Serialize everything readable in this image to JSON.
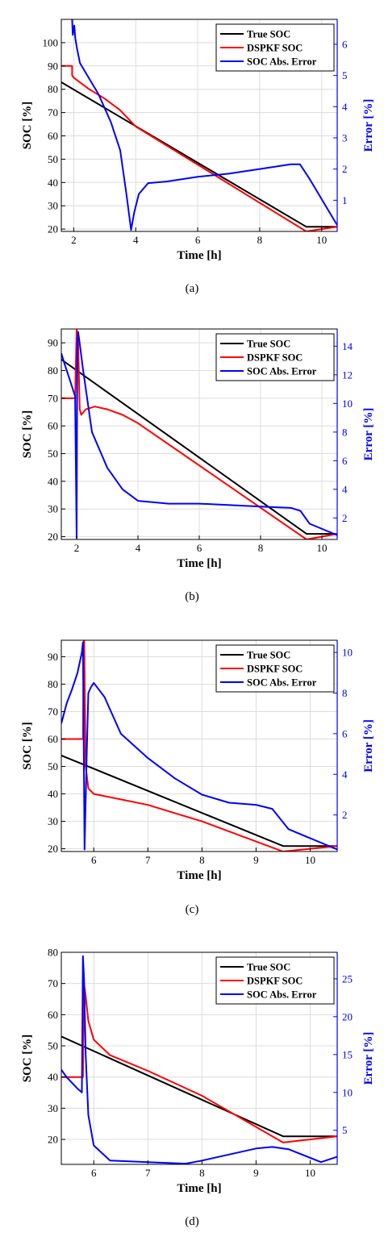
{
  "chart_data": [
    {
      "id": "a",
      "type": "line",
      "caption": "(a)",
      "xlabel": "Time [h]",
      "ylabel_left": "SOC [%]",
      "ylabel_right": "Error [%]",
      "xlim": [
        1.6,
        10.5
      ],
      "ylim_left": [
        19,
        110
      ],
      "ylim_right": [
        0,
        6.8
      ],
      "xticks": [
        2,
        4,
        6,
        8,
        10
      ],
      "yticks_left": [
        20,
        30,
        40,
        50,
        60,
        70,
        80,
        90,
        100
      ],
      "yticks_right": [
        1,
        2,
        3,
        4,
        5,
        6
      ],
      "grid": true,
      "legend_position": "top-right",
      "colors": {
        "true_soc": "#000000",
        "dspkf_soc": "#ff0000",
        "error": "#0000ff"
      },
      "series": [
        {
          "name": "True SOC",
          "axis": "left",
          "color": "#000000",
          "x": [
            1.6,
            9.5,
            10.5
          ],
          "y": [
            83,
            21,
            21
          ]
        },
        {
          "name": "DSPKF SOC",
          "axis": "left",
          "color": "#ff0000",
          "x": [
            1.6,
            1.95,
            1.95,
            2.0,
            2.5,
            3.0,
            3.5,
            4.0,
            9.5,
            10.5
          ],
          "y": [
            90,
            90,
            86,
            85,
            80,
            76,
            71,
            64,
            19,
            21
          ]
        },
        {
          "name": "SOC Abs. Error",
          "axis": "right",
          "color": "#0000ff",
          "x": [
            1.95,
            1.97,
            2.02,
            2.05,
            2.1,
            2.2,
            2.5,
            2.8,
            3.2,
            3.5,
            3.7,
            3.85,
            3.95,
            4.1,
            4.4,
            5.0,
            6.0,
            7.0,
            8.0,
            9.0,
            9.3,
            9.6,
            10.5
          ],
          "y": [
            6.8,
            6.3,
            6.6,
            6.2,
            5.9,
            5.4,
            4.9,
            4.4,
            3.5,
            2.6,
            1.2,
            0.05,
            0.6,
            1.2,
            1.55,
            1.6,
            1.75,
            1.85,
            2.0,
            2.15,
            2.15,
            1.7,
            0.2
          ]
        }
      ]
    },
    {
      "id": "b",
      "type": "line",
      "caption": "(b)",
      "xlabel": "Time [h]",
      "ylabel_left": "SOC [%]",
      "ylabel_right": "Error [%]",
      "xlim": [
        1.5,
        10.5
      ],
      "ylim_left": [
        19,
        95
      ],
      "ylim_right": [
        0.5,
        15.2
      ],
      "xticks": [
        2,
        4,
        6,
        8,
        10
      ],
      "yticks_left": [
        20,
        30,
        40,
        50,
        60,
        70,
        80,
        90
      ],
      "yticks_right": [
        2,
        4,
        6,
        8,
        10,
        12,
        14
      ],
      "grid": true,
      "legend_position": "top-right",
      "series": [
        {
          "name": "True SOC",
          "axis": "left",
          "color": "#000000",
          "x": [
            1.5,
            9.5,
            10.5
          ],
          "y": [
            84,
            21,
            21
          ]
        },
        {
          "name": "DSPKF SOC",
          "axis": "left",
          "color": "#ff0000",
          "x": [
            1.5,
            1.95,
            2.0,
            2.05,
            2.1,
            2.15,
            2.3,
            2.6,
            3.0,
            3.5,
            4.0,
            9.5,
            10.5
          ],
          "y": [
            70,
            70,
            95,
            90,
            66,
            64,
            66,
            67,
            66,
            64,
            61,
            19,
            21
          ]
        },
        {
          "name": "SOC Abs. Error",
          "axis": "right",
          "color": "#0000ff",
          "x": [
            1.5,
            1.6,
            1.8,
            1.95,
            2.0,
            2.02,
            2.05,
            2.1,
            2.2,
            2.5,
            3.0,
            3.5,
            4.0,
            5.0,
            6.0,
            7.0,
            8.0,
            9.0,
            9.3,
            9.6,
            10.5
          ],
          "y": [
            13.5,
            12.8,
            11.5,
            10.5,
            0.6,
            14.0,
            15.0,
            14.2,
            12.5,
            8.0,
            5.5,
            4.0,
            3.2,
            3.0,
            3.0,
            2.9,
            2.8,
            2.7,
            2.5,
            1.6,
            0.8
          ]
        }
      ]
    },
    {
      "id": "c",
      "type": "line",
      "caption": "(c)",
      "xlabel": "Time [h]",
      "ylabel_left": "SOC [%]",
      "ylabel_right": "Error [%]",
      "xlim": [
        5.4,
        10.5
      ],
      "ylim_left": [
        19,
        96
      ],
      "ylim_right": [
        0.2,
        10.6
      ],
      "xticks": [
        6,
        7,
        8,
        9,
        10
      ],
      "yticks_left": [
        20,
        30,
        40,
        50,
        60,
        70,
        80,
        90
      ],
      "yticks_right": [
        2,
        4,
        6,
        8,
        10
      ],
      "grid": true,
      "legend_position": "top-right",
      "series": [
        {
          "name": "True SOC",
          "axis": "left",
          "color": "#000000",
          "x": [
            5.4,
            9.5,
            10.5
          ],
          "y": [
            54,
            21,
            21
          ]
        },
        {
          "name": "DSPKF SOC",
          "axis": "left",
          "color": "#ff0000",
          "x": [
            5.4,
            5.8,
            5.82,
            5.85,
            5.9,
            6.0,
            6.5,
            7.0,
            7.5,
            8.0,
            9.5,
            10.5
          ],
          "y": [
            60,
            60,
            100,
            50,
            42,
            40,
            38,
            36,
            33,
            30,
            19,
            21
          ]
        },
        {
          "name": "SOC Abs. Error",
          "axis": "right",
          "color": "#0000ff",
          "x": [
            5.4,
            5.5,
            5.6,
            5.7,
            5.78,
            5.8,
            5.83,
            5.87,
            5.9,
            5.95,
            6.0,
            6.2,
            6.5,
            7.0,
            7.5,
            8.0,
            8.5,
            9.0,
            9.3,
            9.6,
            10.5
          ],
          "y": [
            6.5,
            7.5,
            8.2,
            9.0,
            10.0,
            10.5,
            0.3,
            5.0,
            8.0,
            8.3,
            8.5,
            7.8,
            6.0,
            4.8,
            3.8,
            3.0,
            2.6,
            2.5,
            2.3,
            1.3,
            0.3
          ]
        }
      ]
    },
    {
      "id": "d",
      "type": "line",
      "caption": "(d)",
      "xlabel": "Time [h]",
      "ylabel_left": "SOC [%]",
      "ylabel_right": "Error [%]",
      "xlim": [
        5.4,
        10.5
      ],
      "ylim_left": [
        12,
        80
      ],
      "ylim_right": [
        0.5,
        28.5
      ],
      "xticks": [
        6,
        7,
        8,
        9,
        10
      ],
      "yticks_left": [
        20,
        30,
        40,
        50,
        60,
        70,
        80
      ],
      "yticks_right": [
        5,
        10,
        15,
        20,
        25
      ],
      "grid": true,
      "legend_position": "top-right",
      "series": [
        {
          "name": "True SOC",
          "axis": "left",
          "color": "#000000",
          "x": [
            5.4,
            9.5,
            10.5
          ],
          "y": [
            53,
            21,
            21
          ]
        },
        {
          "name": "DSPKF SOC",
          "axis": "left",
          "color": "#ff0000",
          "x": [
            5.4,
            5.8,
            5.82,
            5.85,
            5.9,
            6.0,
            6.3,
            7.0,
            8.0,
            9.5,
            10.5
          ],
          "y": [
            40,
            40,
            70,
            66,
            58,
            52,
            47,
            42,
            34,
            19,
            21
          ]
        },
        {
          "name": "SOC Abs. Error",
          "axis": "right",
          "color": "#0000ff",
          "x": [
            5.4,
            5.5,
            5.7,
            5.78,
            5.8,
            5.82,
            5.85,
            5.9,
            6.0,
            6.3,
            7.0,
            7.7,
            8.0,
            9.0,
            9.3,
            9.6,
            10.2,
            10.5
          ],
          "y": [
            13.0,
            12.0,
            10.5,
            10.0,
            28.0,
            25.0,
            15.0,
            7.0,
            3.0,
            1.0,
            0.8,
            0.6,
            1.0,
            2.6,
            2.8,
            2.5,
            0.8,
            1.5
          ]
        }
      ]
    }
  ]
}
